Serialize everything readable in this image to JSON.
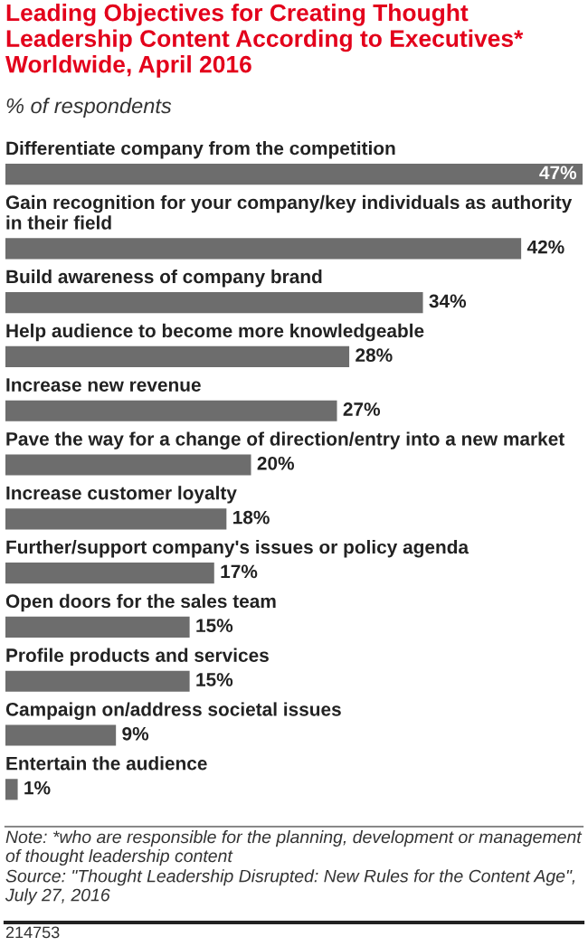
{
  "chart_data": {
    "type": "bar",
    "orientation": "horizontal",
    "title": "Leading Objectives for Creating Thought Leadership Content According to Executives* Worldwide, April 2016",
    "subtitle": "% of respondents",
    "categories": [
      "Differentiate company from the competition",
      "Gain recognition for your company/key individuals as authority in their field",
      "Build awareness of company brand",
      "Help audience to become more knowledgeable",
      "Increase new revenue",
      "Pave the way for a change of direction/entry into a new market",
      "Increase customer loyalty",
      "Further/support company's issues or policy agenda",
      "Open doors for the sales team",
      "Profile products and services",
      "Campaign on/address societal issues",
      "Entertain the audience"
    ],
    "values": [
      47,
      42,
      34,
      28,
      27,
      20,
      18,
      17,
      15,
      15,
      9,
      1
    ],
    "value_labels": [
      "47%",
      "42%",
      "34%",
      "28%",
      "27%",
      "20%",
      "18%",
      "17%",
      "15%",
      "15%",
      "9%",
      "1%"
    ],
    "color": "#6d6d6d",
    "legend": false,
    "annotations": [
      "Note: *who are responsible for the planning, development or management of thought leadership content",
      "Source: \"Thought Leadership Disrupted: New Rules for the Content Age\", July 27, 2016",
      "214753"
    ]
  }
}
